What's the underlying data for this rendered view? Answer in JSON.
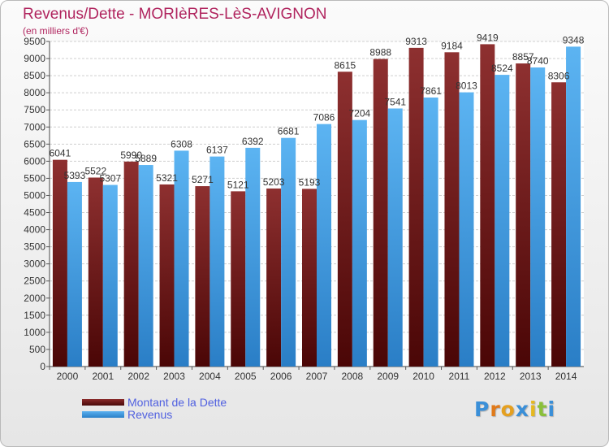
{
  "colors": {
    "debt": "#7a1a1a",
    "revenue": "#3a9ae0",
    "title": "#b0245e",
    "legend_text": "#5060e0"
  },
  "chart_data": {
    "type": "bar",
    "title": "Revenus/Dette - MORIèRES-LèS-AVIGNON",
    "subtitle": "(en milliers d'€)",
    "categories": [
      "2000",
      "2001",
      "2002",
      "2003",
      "2004",
      "2005",
      "2006",
      "2007",
      "2008",
      "2009",
      "2010",
      "2011",
      "2012",
      "2013",
      "2014"
    ],
    "series": [
      {
        "name": "Montant de la Dette",
        "values": [
          6041,
          5522,
          5990,
          5321,
          5271,
          5121,
          5203,
          5193,
          8615,
          8988,
          9313,
          9184,
          9419,
          8857,
          8306
        ]
      },
      {
        "name": "Revenus",
        "values": [
          5393,
          5307,
          5889,
          6308,
          6137,
          6392,
          6681,
          7086,
          7204,
          7541,
          7861,
          8013,
          8524,
          8740,
          9348
        ]
      }
    ],
    "ylim": [
      0,
      9500
    ],
    "yticks": [
      0,
      500,
      1000,
      1500,
      2000,
      2500,
      3000,
      3500,
      4000,
      4500,
      5000,
      5500,
      6000,
      6500,
      7000,
      7500,
      8000,
      8500,
      9000,
      9500
    ],
    "grid": true,
    "legend_position": "bottom-left"
  },
  "legend": {
    "debt_label": "Montant de la Dette",
    "revenue_label": "Revenus"
  },
  "logo": {
    "text": "Proxiti",
    "letters": [
      "P",
      "r",
      "o",
      "x",
      "i",
      "t",
      "i"
    ],
    "letter_colors": [
      "#3a8fd8",
      "#e07a1a",
      "#e5a020",
      "#3a8fd8",
      "#e5b820",
      "#8ac03a",
      "#3a8fd8"
    ]
  }
}
